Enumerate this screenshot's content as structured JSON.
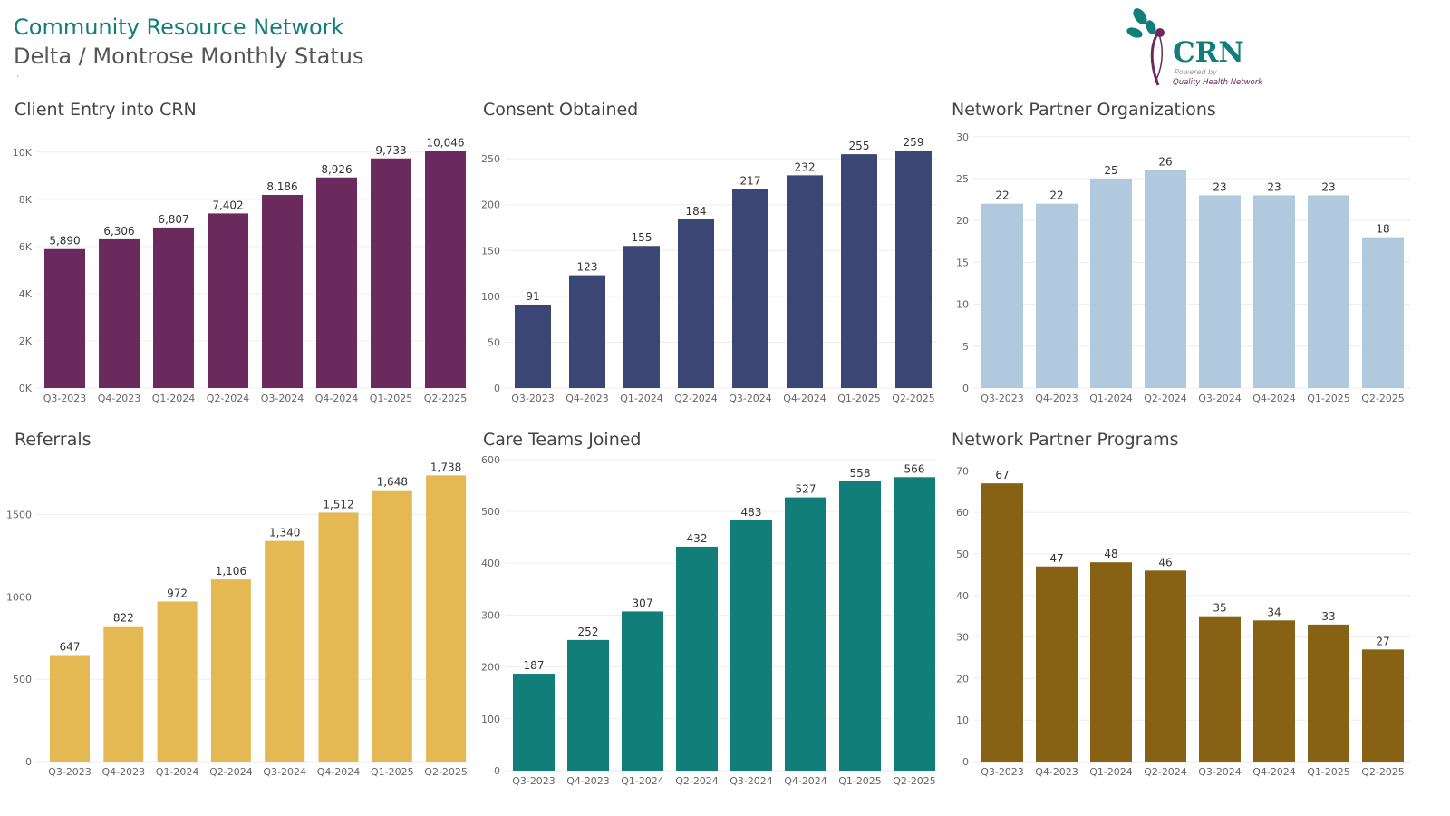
{
  "header": {
    "title": "Community Resource Network",
    "subtitle": "Delta / Montrose Monthly Status",
    "dots": ".."
  },
  "logo": {
    "text": "CRN",
    "powered_by": "Powered by",
    "org": "Quality Health Network"
  },
  "colors": {
    "title": "#127e7a",
    "client_entry": "#6b2a5e",
    "consent": "#3b4675",
    "partner_orgs": "#b1c9de",
    "referrals": "#e4b953",
    "care_teams": "#127e7a",
    "programs": "#876214"
  },
  "chart_data": [
    {
      "id": "client-entry",
      "type": "bar",
      "title": "Client Entry into CRN",
      "categories": [
        "Q3-2023",
        "Q4-2023",
        "Q1-2024",
        "Q2-2024",
        "Q3-2024",
        "Q4-2024",
        "Q1-2025",
        "Q2-2025"
      ],
      "values": [
        5890,
        6306,
        6807,
        7402,
        8186,
        8926,
        9733,
        10046
      ],
      "value_labels": [
        "5,890",
        "6,306",
        "6,807",
        "7,402",
        "8,186",
        "8,926",
        "9,733",
        "10,046"
      ],
      "yticks": [
        0,
        2000,
        4000,
        6000,
        8000,
        10000
      ],
      "ytick_labels": [
        "0K",
        "2K",
        "4K",
        "6K",
        "8K",
        "10K"
      ],
      "ylim": [
        0,
        10300
      ],
      "color": "#6b2a5e"
    },
    {
      "id": "consent-obtained",
      "type": "bar",
      "title": "Consent Obtained",
      "categories": [
        "Q3-2023",
        "Q4-2023",
        "Q1-2024",
        "Q2-2024",
        "Q3-2024",
        "Q4-2024",
        "Q1-2025",
        "Q2-2025"
      ],
      "values": [
        91,
        123,
        155,
        184,
        217,
        232,
        255,
        259
      ],
      "value_labels": [
        "91",
        "123",
        "155",
        "184",
        "217",
        "232",
        "255",
        "259"
      ],
      "yticks": [
        0,
        50,
        100,
        150,
        200,
        250
      ],
      "ytick_labels": [
        "0",
        "50",
        "100",
        "150",
        "200",
        "250"
      ],
      "ylim": [
        0,
        265
      ],
      "color": "#3b4675"
    },
    {
      "id": "partner-organizations",
      "type": "bar",
      "title": "Network Partner Organizations",
      "categories": [
        "Q3-2023",
        "Q4-2023",
        "Q1-2024",
        "Q2-2024",
        "Q3-2024",
        "Q4-2024",
        "Q1-2025",
        "Q2-2025"
      ],
      "values": [
        22,
        22,
        25,
        26,
        23,
        23,
        23,
        18
      ],
      "value_labels": [
        "22",
        "22",
        "25",
        "26",
        "23",
        "23",
        "23",
        "18"
      ],
      "yticks": [
        0,
        5,
        10,
        15,
        20,
        25,
        30
      ],
      "ytick_labels": [
        "0",
        "5",
        "10",
        "15",
        "20",
        "25",
        "30"
      ],
      "ylim": [
        0,
        29
      ],
      "color": "#b1c9de"
    },
    {
      "id": "referrals",
      "type": "bar",
      "title": "Referrals",
      "categories": [
        "Q3-2023",
        "Q4-2023",
        "Q1-2024",
        "Q2-2024",
        "Q3-2024",
        "Q4-2024",
        "Q1-2025",
        "Q2-2025"
      ],
      "values": [
        647,
        822,
        972,
        1106,
        1340,
        1512,
        1648,
        1738
      ],
      "value_labels": [
        "647",
        "822",
        "972",
        "1,106",
        "1,340",
        "1,512",
        "1,648",
        "1,738"
      ],
      "yticks": [
        0,
        500,
        1000,
        1500
      ],
      "ytick_labels": [
        "0",
        "500",
        "1000",
        "1500"
      ],
      "ylim": [
        0,
        1740
      ],
      "color": "#e4b953"
    },
    {
      "id": "care-teams",
      "type": "bar",
      "title": "Care Teams Joined",
      "categories": [
        "Q3-2023",
        "Q4-2023",
        "Q1-2024",
        "Q2-2024",
        "Q3-2024",
        "Q4-2024",
        "Q1-2025",
        "Q2-2025"
      ],
      "values": [
        187,
        252,
        307,
        432,
        483,
        527,
        558,
        566
      ],
      "value_labels": [
        "187",
        "252",
        "307",
        "432",
        "483",
        "527",
        "558",
        "566"
      ],
      "yticks": [
        0,
        100,
        200,
        300,
        400,
        500,
        600
      ],
      "ytick_labels": [
        "0",
        "100",
        "200",
        "300",
        "400",
        "500",
        "600"
      ],
      "ylim": [
        0,
        570
      ],
      "color": "#127e7a"
    },
    {
      "id": "partner-programs",
      "type": "bar",
      "title": "Network Partner Programs",
      "categories": [
        "Q3-2023",
        "Q4-2023",
        "Q1-2024",
        "Q2-2024",
        "Q3-2024",
        "Q4-2024",
        "Q1-2025",
        "Q2-2025"
      ],
      "values": [
        67,
        47,
        48,
        46,
        35,
        34,
        33,
        27
      ],
      "value_labels": [
        "67",
        "47",
        "48",
        "46",
        "35",
        "34",
        "33",
        "27"
      ],
      "yticks": [
        0,
        10,
        20,
        30,
        40,
        50,
        60,
        70
      ],
      "ytick_labels": [
        "0",
        "10",
        "20",
        "30",
        "40",
        "50",
        "60",
        "70"
      ],
      "ylim": [
        0,
        69
      ],
      "color": "#876214"
    }
  ]
}
